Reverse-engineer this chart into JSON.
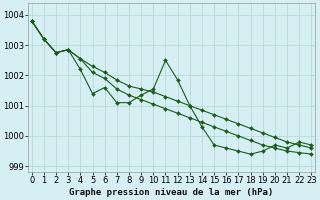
{
  "title": "Graphe pression niveau de la mer (hPa)",
  "background_color": "#d6eff5",
  "grid_color": "#b0d8cc",
  "line_color": "#1a5c1a",
  "x_values": [
    0,
    1,
    2,
    3,
    4,
    5,
    6,
    7,
    8,
    9,
    10,
    11,
    12,
    13,
    14,
    15,
    16,
    17,
    18,
    19,
    20,
    21,
    22,
    23
  ],
  "line_upper": [
    1003.8,
    1003.2,
    1002.75,
    1002.85,
    1002.55,
    1002.3,
    1002.1,
    1001.85,
    1001.65,
    1001.55,
    1001.45,
    1001.3,
    1001.15,
    1001.0,
    1000.85,
    1000.7,
    1000.55,
    1000.4,
    1000.25,
    1000.1,
    999.95,
    999.8,
    999.7,
    999.6
  ],
  "line_middle": [
    1003.8,
    1003.2,
    1002.75,
    1002.85,
    1002.55,
    1002.1,
    1001.9,
    1001.55,
    1001.35,
    1001.2,
    1001.05,
    1000.9,
    1000.75,
    1000.6,
    1000.45,
    1000.3,
    1000.15,
    1000.0,
    999.85,
    999.7,
    999.6,
    999.5,
    999.45,
    999.4
  ],
  "line_zigzag": [
    1003.8,
    1003.2,
    1002.75,
    1002.85,
    1002.2,
    1001.4,
    1001.6,
    1001.1,
    1001.1,
    1001.35,
    1001.55,
    1002.5,
    1001.85,
    1001.0,
    1000.3,
    999.7,
    999.6,
    999.5,
    999.4,
    999.5,
    999.7,
    999.6,
    999.8,
    999.7
  ],
  "ylim": [
    998.8,
    1004.4
  ],
  "yticks": [
    999,
    1000,
    1001,
    1002,
    1003,
    1004
  ],
  "tick_fontsize": 6.0,
  "label_fontsize": 6.5
}
